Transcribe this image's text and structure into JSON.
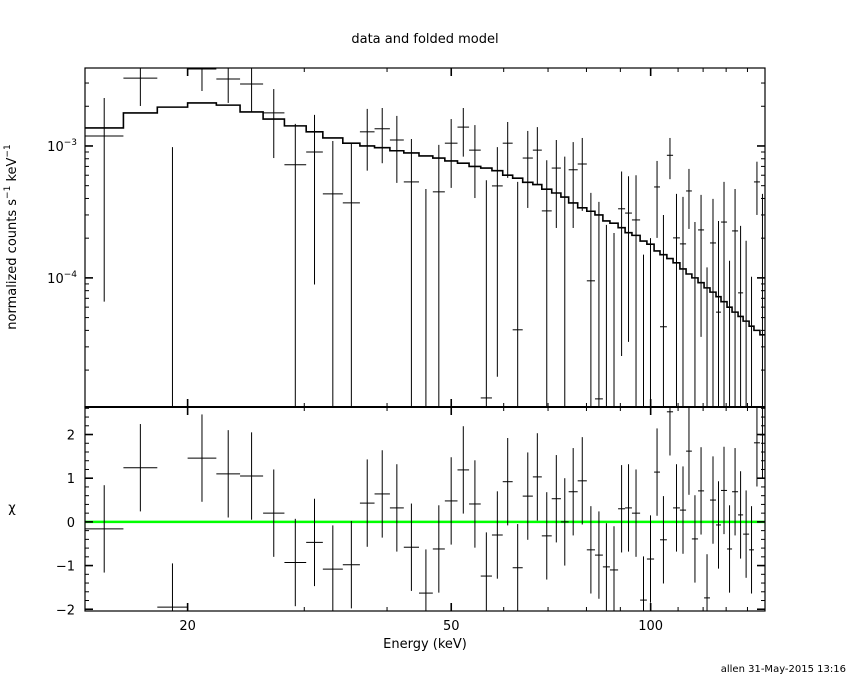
{
  "chart_data": {
    "type": "scatter",
    "title": "data and folded model",
    "xlabel": "Energy (keV)",
    "x_scale": "log",
    "xlim": [
      14.0,
      148.8
    ],
    "x_ticks": [
      "20",
      "50",
      "100"
    ],
    "x_tick_values": [
      20,
      50,
      100
    ],
    "footer": "allen 31-May-2015 13:16",
    "colors": {
      "data": "#000000",
      "model": "#000000",
      "zero_line": "#00ff00"
    },
    "top_panel": {
      "ylabel": "normalized counts s",
      "ylabel_exp1": "−1",
      "ylabel_mid": " keV",
      "ylabel_exp2": "−1",
      "y_scale": "log",
      "ylim": [
        1.05e-05,
        0.0039
      ],
      "y_ticks": [
        {
          "base": "10",
          "exp": "−3",
          "value": 0.001
        },
        {
          "base": "10",
          "exp": "−4",
          "value": 0.0001
        }
      ]
    },
    "bottom_panel": {
      "ylabel": "χ",
      "ylim": [
        -2.04,
        2.63
      ],
      "y_ticks": [
        "−2",
        "−1",
        "0",
        "1",
        "2"
      ],
      "y_tick_values": [
        -2,
        -1,
        0,
        1,
        2
      ],
      "chi_err": 1
    },
    "energy_edges": [
      14.0,
      16.0,
      18.0,
      20.0,
      22.1,
      24.0,
      26.0,
      28.0,
      30.2,
      32.0,
      34.3,
      36.4,
      38.3,
      40.4,
      42.4,
      44.7,
      46.9,
      48.9,
      51.1,
      53.2,
      55.4,
      57.6,
      59.8,
      61.9,
      64.1,
      66.4,
      68.5,
      70.9,
      73.2,
      75.2,
      77.6,
      80.1,
      82.4,
      84.7,
      86.8,
      89.3,
      91.5,
      93.7,
      96.4,
      98.7,
      101.2,
      103.3,
      105.8,
      108.1,
      110.7,
      113.1,
      115.4,
      117.9,
      120.4,
      122.9,
      125.5,
      127.7,
      130.4,
      132.7,
      135.5,
      137.9,
      140.8,
      143.2,
      146.2,
      148.8
    ],
    "rate": [
      0.00119,
      0.00327,
      1e-06,
      0.00383,
      0.00322,
      0.00295,
      0.00178,
      0.00072,
      0.0009,
      0.000433,
      0.00037,
      0.00128,
      0.00135,
      0.00111,
      0.000534,
      1e-06,
      0.000449,
      0.00105,
      0.00139,
      0.00093,
      1.23e-05,
      0.000498,
      0.00105,
      4.04e-05,
      0.00081,
      0.00093,
      0.000322,
      0.00068,
      0.00041,
      0.00066,
      0.00073,
      9.5e-05,
      1.21e-05,
      1e-06,
      1e-06,
      0.000334,
      0.00031,
      0.000275,
      1e-06,
      1e-06,
      0.000489,
      4.26e-05,
      0.00085,
      0.000201,
      0.000181,
      0.000456,
      1e-06,
      0.000231,
      1e-06,
      0.000184,
      5.5e-05,
      0.000265,
      1e-06,
      0.000227,
      7.7e-05,
      1e-06,
      1e-06,
      0.000534,
      1e-06
    ],
    "rate_lo": [
      6.6e-05,
      0.00201,
      1e-07,
      0.00261,
      0.00212,
      0.00181,
      0.00081,
      1e-07,
      8.9e-05,
      1e-07,
      1e-07,
      0.00065,
      0.00074,
      0.000525,
      1e-07,
      1e-07,
      1e-07,
      0.000481,
      0.00083,
      0.000403,
      1e-07,
      1.78e-05,
      0.000573,
      1e-07,
      0.000339,
      0.000507,
      1e-07,
      0.000239,
      1e-07,
      0.000239,
      0.000322,
      1e-07,
      1e-07,
      1e-07,
      1e-07,
      2.56e-05,
      3.27e-05,
      1e-07,
      1e-07,
      1e-07,
      0.000201,
      1e-07,
      0.00056,
      1e-07,
      1e-07,
      0.000235,
      1e-07,
      3.57e-05,
      1e-07,
      1e-07,
      1e-07,
      1e-07,
      1e-07,
      1e-07,
      1e-07,
      1e-07,
      1e-07,
      0.0003,
      1e-07
    ],
    "rate_hi": [
      0.00231,
      0.0045,
      0.00098,
      0.005,
      0.0045,
      0.0043,
      0.0027,
      0.00147,
      0.00172,
      0.00109,
      0.00105,
      0.00191,
      0.00194,
      0.00169,
      0.00113,
      0.000472,
      0.00102,
      0.0016,
      0.00194,
      0.00144,
      0.00055,
      0.00098,
      0.00152,
      0.000534,
      0.0013,
      0.00139,
      0.00078,
      0.00111,
      0.00083,
      0.00107,
      0.00115,
      0.000441,
      0.000377,
      0.000252,
      0.000219,
      0.00064,
      0.00059,
      0.0006,
      0.00015,
      0.0002,
      0.00077,
      0.0003,
      0.00115,
      0.000433,
      0.000411,
      0.00067,
      0.000265,
      0.000426,
      0.00012,
      0.000397,
      0.00027,
      0.000534,
      0.000135,
      0.000472,
      0.000248,
      0.000191,
      0.000102,
      0.00076,
      0.000433
    ],
    "model": [
      0.00137,
      0.00178,
      0.00197,
      0.00212,
      0.00204,
      0.00181,
      0.0016,
      0.00142,
      0.00128,
      0.00115,
      0.00105,
      0.001,
      0.00097,
      0.00092,
      0.000885,
      0.00084,
      0.00081,
      0.00077,
      0.00074,
      0.0007,
      0.00068,
      0.00065,
      0.0006,
      0.00057,
      0.00053,
      0.00051,
      0.00047,
      0.00044,
      0.00041,
      0.00037,
      0.00034,
      0.00032,
      0.0003,
      0.00027,
      0.00026,
      0.00024,
      0.00022,
      0.00021,
      0.00019,
      0.00018,
      0.00016,
      0.00015,
      0.00014,
      0.00013,
      0.000117,
      0.000107,
      0.0001,
      9.2e-05,
      8.4e-05,
      7.8e-05,
      7.2e-05,
      6.6e-05,
      6e-05,
      5.5e-05,
      5.1e-05,
      4.7e-05,
      4.3e-05,
      4e-05,
      3.7e-05
    ],
    "chi": [
      -0.16,
      1.24,
      -1.95,
      1.46,
      1.1,
      1.05,
      0.2,
      -0.93,
      -0.47,
      -1.08,
      -0.98,
      0.43,
      0.64,
      0.32,
      -0.58,
      -1.63,
      -0.62,
      0.48,
      1.19,
      0.41,
      -1.24,
      -0.3,
      0.92,
      -1.05,
      0.59,
      1.03,
      -0.32,
      0.53,
      0.0,
      0.69,
      0.94,
      -0.64,
      -0.76,
      -1.03,
      -1.1,
      0.3,
      0.32,
      0.2,
      -1.79,
      -0.85,
      1.14,
      -0.41,
      2.52,
      0.32,
      0.27,
      1.62,
      -0.39,
      0.71,
      -1.74,
      0.5,
      -0.07,
      0.72,
      -0.62,
      0.69,
      0.16,
      -0.28,
      -0.64,
      1.81,
      1.99
    ]
  }
}
